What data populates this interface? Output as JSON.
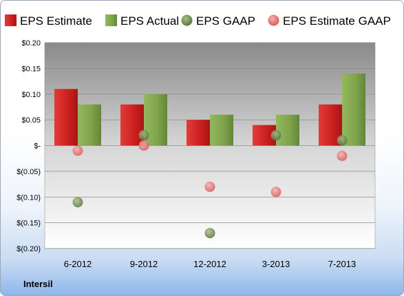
{
  "chart_data": {
    "type": "bar",
    "categories": [
      "6-2012",
      "9-2012",
      "12-2012",
      "3-2013",
      "7-2013"
    ],
    "series": [
      {
        "name": "EPS Estimate",
        "kind": "bar",
        "color": "#cc2020",
        "values": [
          0.11,
          0.08,
          0.05,
          0.04,
          0.08
        ]
      },
      {
        "name": "EPS Actual",
        "kind": "bar",
        "color": "#7ea34a",
        "values": [
          0.08,
          0.1,
          0.06,
          0.06,
          0.14
        ]
      },
      {
        "name": "EPS GAAP",
        "kind": "scatter",
        "color": "#6f8a4f",
        "values": [
          -0.11,
          0.02,
          -0.17,
          0.02,
          0.01
        ]
      },
      {
        "name": "EPS Estimate GAAP",
        "kind": "scatter",
        "color": "#e57373",
        "values": [
          -0.01,
          0.0,
          -0.08,
          -0.09,
          -0.02
        ]
      }
    ],
    "ylim": [
      -0.2,
      0.2
    ],
    "yticks": [
      {
        "value": 0.2,
        "label": "$0.20"
      },
      {
        "value": 0.15,
        "label": "$0.15"
      },
      {
        "value": 0.1,
        "label": "$0.10"
      },
      {
        "value": 0.05,
        "label": "$0.05"
      },
      {
        "value": 0.0,
        "label": "$-"
      },
      {
        "value": -0.05,
        "label": "$(0.05)"
      },
      {
        "value": -0.1,
        "label": "$(0.10)"
      },
      {
        "value": -0.15,
        "label": "$(0.15)"
      },
      {
        "value": -0.2,
        "label": "$(0.20)"
      }
    ],
    "grid": true,
    "legend_position": "top",
    "footer": "Intersil"
  }
}
